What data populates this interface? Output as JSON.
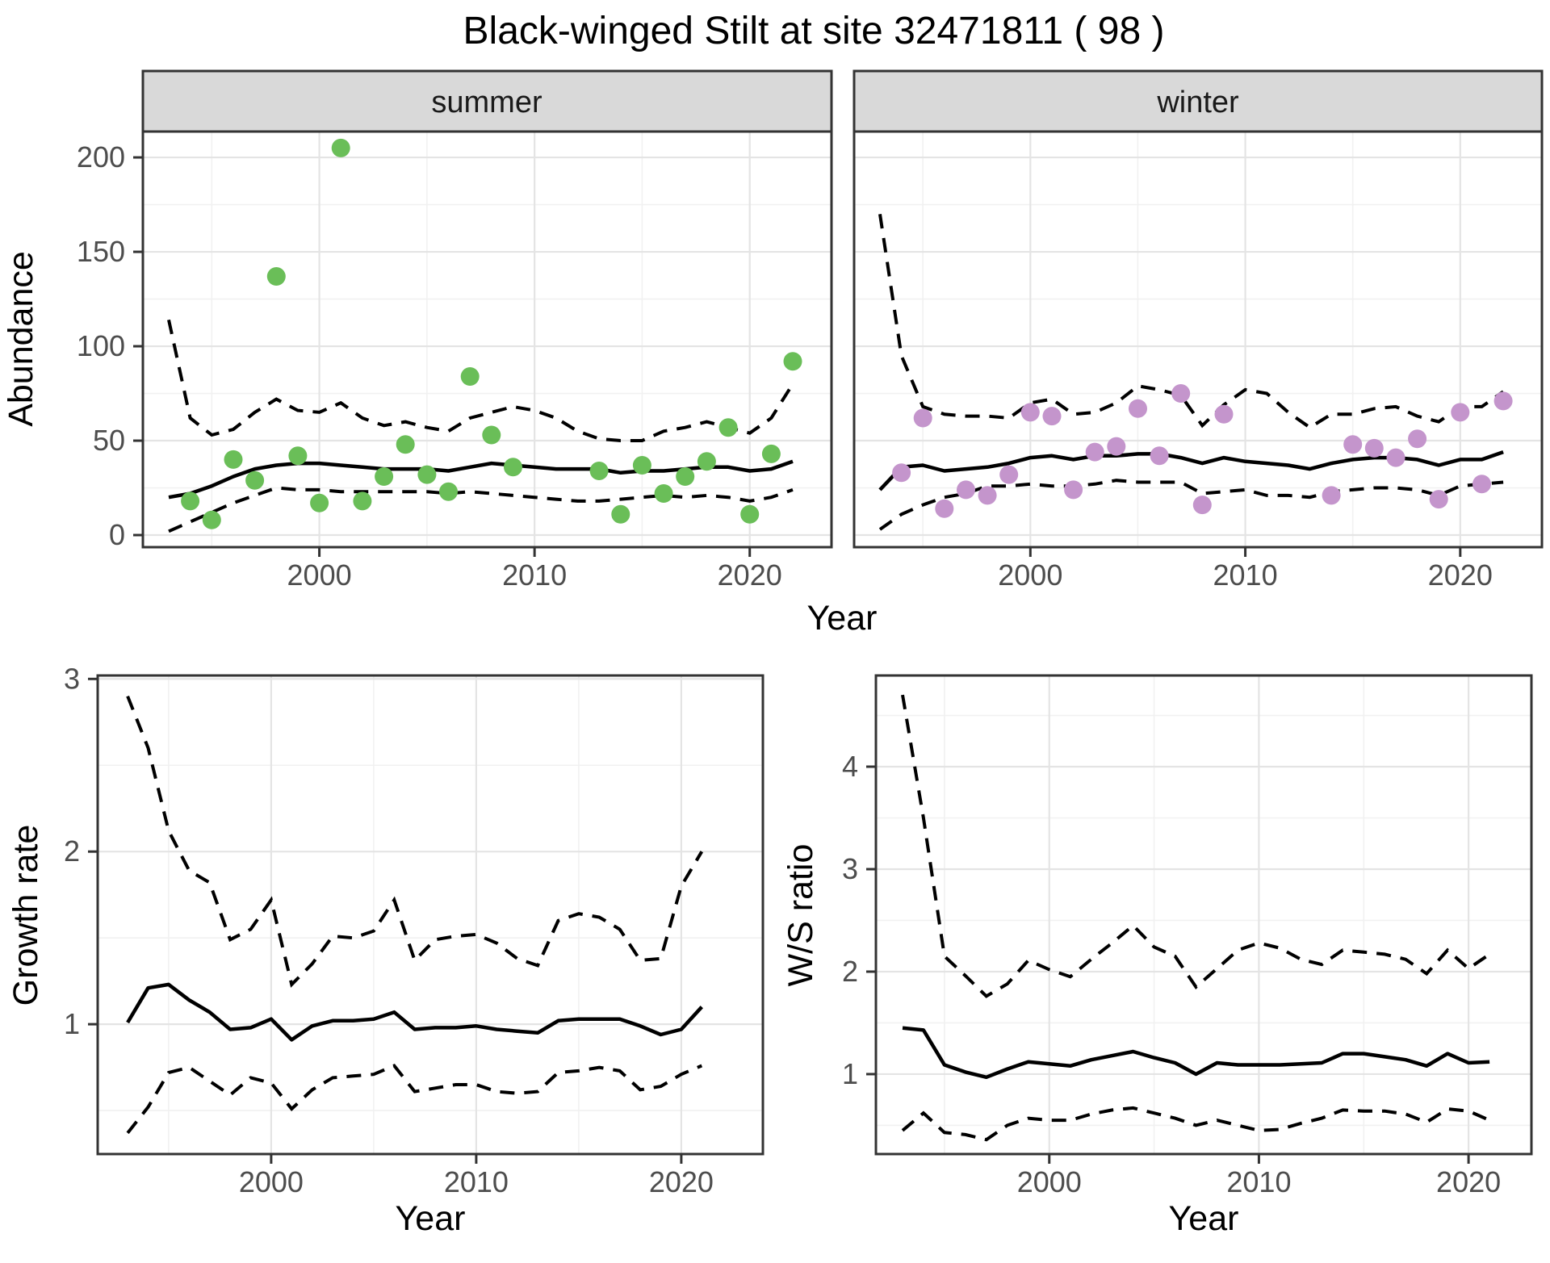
{
  "title": "Black-winged Stilt at site 32471811 ( 98 )",
  "axes": {
    "abundance_label": "Abundance",
    "year_label": "Year",
    "growth_label": "Growth rate",
    "ws_label": "W/S ratio"
  },
  "facets": {
    "summer": "summer",
    "winter": "winter"
  },
  "colors": {
    "summer_point": "#6ABE58",
    "winter_point": "#C495CC",
    "line": "#000000",
    "grid_major": "#E4E4E4",
    "grid_minor": "#F1F1F1",
    "panel_border": "#333333",
    "strip_bg": "#D9D9D9",
    "tick_color": "#333333",
    "tick_label": "#4d4d4d"
  },
  "chart_data": [
    {
      "id": "abundance-summer",
      "type": "scatter",
      "facet": "summer",
      "xlabel": "Year",
      "ylabel": "Abundance",
      "xlim": [
        1991.8,
        2023.8
      ],
      "ylim": [
        -6.4,
        213.7
      ],
      "xticks": [
        2000,
        2010,
        2020
      ],
      "xminor": [
        1995,
        2005,
        2015
      ],
      "yticks": [
        0,
        50,
        100,
        150,
        200
      ],
      "yminor": [
        25,
        75,
        125,
        175
      ],
      "point_color": "#6ABE58",
      "points": [
        [
          1994,
          18
        ],
        [
          1995,
          8
        ],
        [
          1996,
          40
        ],
        [
          1997,
          29
        ],
        [
          1998,
          137
        ],
        [
          1999,
          42
        ],
        [
          2000,
          17
        ],
        [
          2001,
          205
        ],
        [
          2002,
          18
        ],
        [
          2003,
          31
        ],
        [
          2004,
          48
        ],
        [
          2005,
          32
        ],
        [
          2006,
          23
        ],
        [
          2007,
          84
        ],
        [
          2008,
          53
        ],
        [
          2009,
          36
        ],
        [
          2013,
          34
        ],
        [
          2014,
          11
        ],
        [
          2015,
          37
        ],
        [
          2016,
          22
        ],
        [
          2017,
          31
        ],
        [
          2018,
          39
        ],
        [
          2019,
          57
        ],
        [
          2020,
          11
        ],
        [
          2021,
          43
        ],
        [
          2022,
          92
        ]
      ],
      "line_years": [
        1993,
        1994,
        1995,
        1996,
        1997,
        1998,
        1999,
        2000,
        2001,
        2002,
        2003,
        2004,
        2005,
        2006,
        2007,
        2008,
        2009,
        2010,
        2011,
        2012,
        2013,
        2014,
        2015,
        2016,
        2017,
        2018,
        2019,
        2020,
        2021,
        2022
      ],
      "median": [
        20,
        22,
        26,
        31,
        35,
        37,
        38,
        38,
        37,
        36,
        35,
        35,
        35,
        34,
        36,
        38,
        37,
        36,
        35,
        35,
        35,
        33,
        34,
        34,
        35,
        36,
        36,
        34,
        35,
        39
      ],
      "lower": [
        2,
        7,
        12,
        17,
        21,
        25,
        24,
        24,
        23,
        23,
        23,
        23,
        23,
        22,
        23,
        22,
        21,
        20,
        19,
        18,
        18,
        19,
        20,
        21,
        20,
        21,
        20,
        18,
        20,
        24
      ],
      "upper": [
        114,
        62,
        53,
        56,
        65,
        72,
        66,
        65,
        70,
        62,
        58,
        60,
        57,
        55,
        62,
        65,
        68,
        66,
        62,
        55,
        51,
        50,
        50,
        55,
        57,
        60,
        57,
        54,
        62,
        80
      ]
    },
    {
      "id": "abundance-winter",
      "type": "scatter",
      "facet": "winter",
      "xlabel": "Year",
      "ylabel": "Abundance",
      "xlim": [
        1991.8,
        2023.8
      ],
      "ylim": [
        -6.4,
        213.7
      ],
      "xticks": [
        2000,
        2010,
        2020
      ],
      "xminor": [
        1995,
        2005,
        2015
      ],
      "yticks": [
        0,
        50,
        100,
        150,
        200
      ],
      "yminor": [
        25,
        75,
        125,
        175
      ],
      "point_color": "#C495CC",
      "points": [
        [
          1994,
          33
        ],
        [
          1995,
          62
        ],
        [
          1996,
          14
        ],
        [
          1997,
          24
        ],
        [
          1998,
          21
        ],
        [
          1999,
          32
        ],
        [
          2000,
          65
        ],
        [
          2001,
          63
        ],
        [
          2002,
          24
        ],
        [
          2003,
          44
        ],
        [
          2004,
          47
        ],
        [
          2005,
          67
        ],
        [
          2006,
          42
        ],
        [
          2007,
          75
        ],
        [
          2008,
          16
        ],
        [
          2009,
          64
        ],
        [
          2014,
          21
        ],
        [
          2015,
          48
        ],
        [
          2016,
          46
        ],
        [
          2017,
          41
        ],
        [
          2018,
          51
        ],
        [
          2019,
          19
        ],
        [
          2020,
          65
        ],
        [
          2021,
          27
        ],
        [
          2022,
          71
        ]
      ],
      "line_years": [
        1993,
        1994,
        1995,
        1996,
        1997,
        1998,
        1999,
        2000,
        2001,
        2002,
        2003,
        2004,
        2005,
        2006,
        2007,
        2008,
        2009,
        2010,
        2011,
        2012,
        2013,
        2014,
        2015,
        2016,
        2017,
        2018,
        2019,
        2020,
        2021,
        2022
      ],
      "median": [
        24,
        36,
        37,
        34,
        35,
        36,
        38,
        41,
        42,
        40,
        42,
        42,
        43,
        43,
        41,
        38,
        41,
        39,
        38,
        37,
        35,
        38,
        40,
        41,
        41,
        40,
        37,
        40,
        40,
        44
      ],
      "lower": [
        3,
        11,
        16,
        20,
        22,
        26,
        26,
        27,
        26,
        26,
        27,
        29,
        28,
        28,
        28,
        22,
        23,
        24,
        21,
        21,
        20,
        23,
        24,
        25,
        25,
        24,
        21,
        26,
        27,
        28
      ],
      "upper": [
        170,
        95,
        68,
        64,
        63,
        63,
        62,
        70,
        72,
        64,
        65,
        70,
        79,
        77,
        74,
        58,
        69,
        77,
        75,
        65,
        57,
        64,
        64,
        67,
        68,
        63,
        60,
        68,
        68,
        76
      ]
    },
    {
      "id": "growth-rate",
      "type": "line",
      "ylabel": "Growth rate",
      "xlabel": "Year",
      "xlim": [
        1991.54,
        2023.98
      ],
      "ylim": [
        0.248,
        3.02
      ],
      "xticks": [
        2000,
        2010,
        2020
      ],
      "xminor": [
        1995,
        2005,
        2015
      ],
      "yticks": [
        1,
        2,
        3
      ],
      "yminor": [
        0.5,
        1.5,
        2.5
      ],
      "points": [],
      "line_years": [
        1993,
        1994,
        1995,
        1996,
        1997,
        1998,
        1999,
        2000,
        2001,
        2002,
        2003,
        2004,
        2005,
        2006,
        2007,
        2008,
        2009,
        2010,
        2011,
        2012,
        2013,
        2014,
        2015,
        2016,
        2017,
        2018,
        2019,
        2020,
        2021
      ],
      "median": [
        1.01,
        1.21,
        1.23,
        1.14,
        1.07,
        0.97,
        0.98,
        1.03,
        0.91,
        0.99,
        1.02,
        1.02,
        1.03,
        1.07,
        0.97,
        0.98,
        0.98,
        0.99,
        0.97,
        0.96,
        0.95,
        1.02,
        1.03,
        1.03,
        1.03,
        0.99,
        0.94,
        0.97,
        1.1
      ],
      "lower": [
        0.37,
        0.52,
        0.72,
        0.75,
        0.67,
        0.59,
        0.69,
        0.66,
        0.51,
        0.62,
        0.69,
        0.7,
        0.71,
        0.76,
        0.61,
        0.63,
        0.65,
        0.65,
        0.61,
        0.6,
        0.61,
        0.72,
        0.73,
        0.75,
        0.73,
        0.62,
        0.64,
        0.71,
        0.76
      ],
      "upper": [
        2.9,
        2.6,
        2.12,
        1.89,
        1.82,
        1.49,
        1.55,
        1.72,
        1.23,
        1.35,
        1.51,
        1.5,
        1.54,
        1.72,
        1.37,
        1.49,
        1.51,
        1.52,
        1.47,
        1.38,
        1.34,
        1.6,
        1.64,
        1.62,
        1.55,
        1.37,
        1.38,
        1.8,
        2.0
      ]
    },
    {
      "id": "ws-ratio",
      "type": "line",
      "ylabel": "W/S ratio",
      "xlabel": "Year",
      "xlim": [
        1991.73,
        2023.0
      ],
      "ylim": [
        0.22,
        4.89
      ],
      "xticks": [
        2000,
        2010,
        2020
      ],
      "xminor": [
        1995,
        2005,
        2015
      ],
      "yticks": [
        1,
        2,
        3,
        4
      ],
      "yminor": [
        0.5,
        1.5,
        2.5,
        3.5,
        4.5
      ],
      "points": [],
      "line_years": [
        1993,
        1994,
        1995,
        1996,
        1997,
        1998,
        1999,
        2000,
        2001,
        2002,
        2003,
        2004,
        2005,
        2006,
        2007,
        2008,
        2009,
        2010,
        2011,
        2012,
        2013,
        2014,
        2015,
        2016,
        2017,
        2018,
        2019,
        2020,
        2021
      ],
      "median": [
        1.45,
        1.43,
        1.09,
        1.02,
        0.97,
        1.05,
        1.12,
        1.1,
        1.08,
        1.14,
        1.18,
        1.22,
        1.16,
        1.11,
        1.0,
        1.11,
        1.09,
        1.09,
        1.09,
        1.1,
        1.11,
        1.2,
        1.2,
        1.17,
        1.14,
        1.08,
        1.2,
        1.11,
        1.12
      ],
      "lower": [
        0.45,
        0.62,
        0.43,
        0.41,
        0.36,
        0.5,
        0.57,
        0.55,
        0.55,
        0.61,
        0.65,
        0.67,
        0.62,
        0.57,
        0.5,
        0.55,
        0.5,
        0.45,
        0.46,
        0.52,
        0.57,
        0.65,
        0.64,
        0.64,
        0.61,
        0.53,
        0.66,
        0.64,
        0.55
      ],
      "upper": [
        4.7,
        3.5,
        2.15,
        1.96,
        1.76,
        1.88,
        2.11,
        2.02,
        1.95,
        2.12,
        2.28,
        2.45,
        2.24,
        2.15,
        1.85,
        2.03,
        2.21,
        2.28,
        2.23,
        2.12,
        2.07,
        2.21,
        2.19,
        2.17,
        2.12,
        1.98,
        2.21,
        2.03,
        2.17
      ]
    }
  ]
}
